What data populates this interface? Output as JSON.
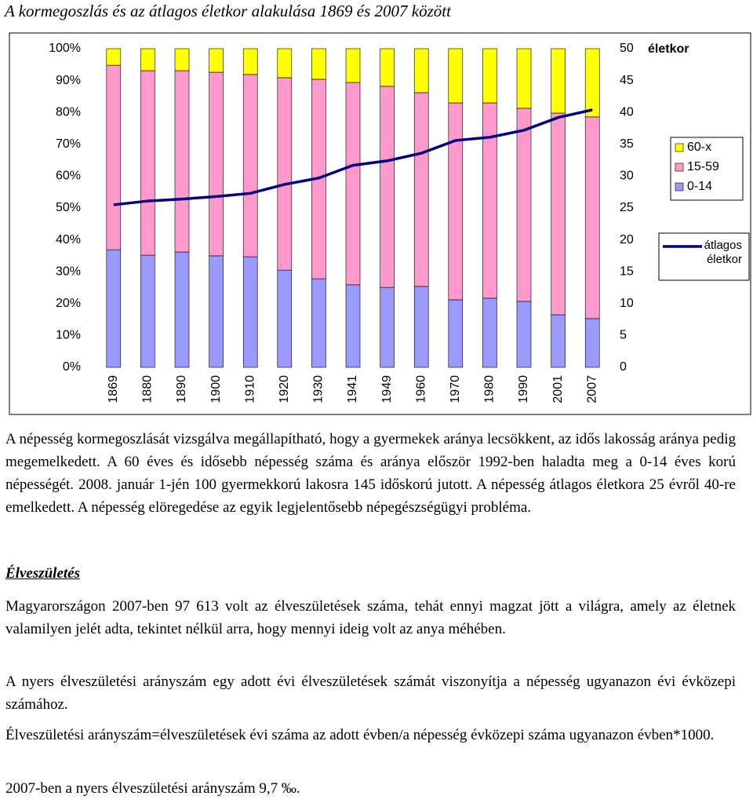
{
  "chart_data": {
    "type": "bar",
    "stacked": true,
    "title": "A kormegoszlás és az átlagos életkor alakulása 1869 és 2007 között",
    "categories": [
      "1869",
      "1880",
      "1890",
      "1900",
      "1910",
      "1920",
      "1930",
      "1941",
      "1949",
      "1960",
      "1970",
      "1980",
      "1990",
      "2001",
      "2007"
    ],
    "series": [
      {
        "name": "0-14",
        "color": "#9999ff",
        "values": [
          36.9,
          35.2,
          36.2,
          35.0,
          34.7,
          30.5,
          27.8,
          25.9,
          25.1,
          25.4,
          21.2,
          21.7,
          20.7,
          16.5,
          15.3
        ]
      },
      {
        "name": "15-59",
        "color": "#ff99cc",
        "values": [
          57.9,
          57.9,
          56.9,
          57.6,
          57.2,
          60.4,
          62.6,
          63.5,
          63.1,
          60.8,
          61.8,
          61.3,
          60.6,
          63.3,
          63.3
        ]
      },
      {
        "name": "60-x",
        "color": "#ffff00",
        "values": [
          5.2,
          6.9,
          6.9,
          7.4,
          8.1,
          9.1,
          9.6,
          10.6,
          11.8,
          13.8,
          17.0,
          17.0,
          18.7,
          20.2,
          21.4
        ]
      },
      {
        "name": "átlagos életkor",
        "type": "line",
        "axis": "y2",
        "color": "#000080",
        "values": [
          25.5,
          26.1,
          26.4,
          26.8,
          27.3,
          28.7,
          29.7,
          31.7,
          32.4,
          33.6,
          35.6,
          36.1,
          37.2,
          39.2,
          40.4
        ]
      }
    ],
    "ylim": [
      0,
      100
    ],
    "yticks": [
      {
        "value": 0,
        "label": "0%"
      },
      {
        "value": 10,
        "label": "10%"
      },
      {
        "value": 20,
        "label": "20%"
      },
      {
        "value": 30,
        "label": "30%"
      },
      {
        "value": 40,
        "label": "40%"
      },
      {
        "value": 50,
        "label": "50%"
      },
      {
        "value": 60,
        "label": "60%"
      },
      {
        "value": 70,
        "label": "70%"
      },
      {
        "value": 80,
        "label": "80%"
      },
      {
        "value": 90,
        "label": "90%"
      },
      {
        "value": 100,
        "label": "100%"
      }
    ],
    "y2label": "életkor",
    "y2lim": [
      0,
      50
    ],
    "y2ticks": [
      0,
      5,
      10,
      15,
      20,
      25,
      30,
      35,
      40,
      45,
      50
    ]
  },
  "paragraphs": [
    "A népesség kormegoszlását vizsgálva megállapítható, hogy a gyermekek aránya lecsökkent, az idős lakosság aránya pedig megemelkedett. A 60 éves és idősebb népesség száma és aránya először 1992-ben haladta meg a 0-14 éves korú népességét. 2008. január 1-jén 100 gyermekkorú lakosra 145 időskorú jutott. A népesség átlagos életkora 25 évről 40-re emelkedett. A népesség elöregedése az egyik legjelentősebb népegészségügyi probléma."
  ],
  "section": {
    "heading": "Élveszületés",
    "paragraphs": [
      "Magyarországon 2007-ben 97 613 volt az élveszületések száma, tehát ennyi magzat jött a világra, amely az életnek valamilyen jelét adta, tekintet nélkül arra, hogy mennyi ideig volt az anya méhében.",
      "A nyers élveszületési arányszám egy adott évi élveszületések számát viszonyítja a népesség ugyanazon évi évközepi számához.",
      "Élveszületési arányszám=élveszületések évi száma az adott évben/a népesség évközepi száma ugyanazon évben*1000.",
      "2007-ben a nyers élveszületési arányszám 9,7 ‰."
    ]
  }
}
